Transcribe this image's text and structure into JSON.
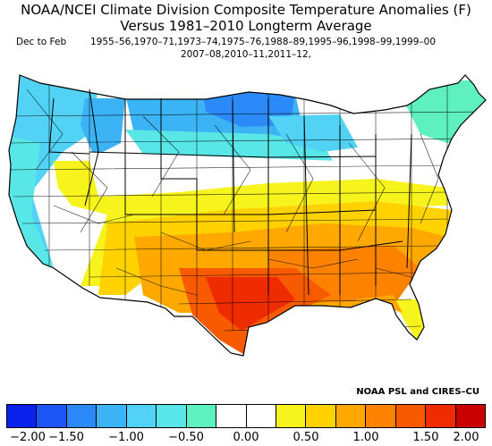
{
  "title": "NOAA/NCEI Climate Division Composite Temperature Anomalies (F)",
  "subtitle": "Versus 1981–2010 Longterm Average",
  "season_label": "Dec to Feb",
  "years_line1": "1955–56,1970–71,1973–74,1975–76,1988–89,1995–96,1998–99,1999–00",
  "years_line2": "2007–08,2010–11,2011–12,",
  "credit": "NOAA PSL and CIRES–CU",
  "colorbar": {
    "colors": [
      "#0b22ee",
      "#1d55f6",
      "#2c8af8",
      "#3cb3f5",
      "#52d2f4",
      "#58e6e6",
      "#5ff0bf",
      "#ffffff",
      "#ffffff",
      "#f7f31c",
      "#ffd200",
      "#ffa800",
      "#fc8200",
      "#f85a00",
      "#ee2c00",
      "#c80000"
    ],
    "labels": [
      "−2.00",
      "−1.50",
      "−1.00",
      "−0.50",
      "0.00",
      "0.50",
      "1.00",
      "1.50",
      "2.00"
    ]
  },
  "map": {
    "regions": [
      {
        "name": "pacific-northwest",
        "anomaly": "-0.50 to -1.00",
        "color": "#52d2f4"
      },
      {
        "name": "northern-plains",
        "anomaly": "-1.50 to -2.00",
        "color": "#2c8af8"
      },
      {
        "name": "great-lakes",
        "anomaly": "-1.00 to -1.50",
        "color": "#3cb3f5"
      },
      {
        "name": "new-england",
        "anomaly": "-0.25 to -0.75",
        "color": "#5ff0bf"
      },
      {
        "name": "mountain-west",
        "anomaly": "-0.25 to 0.25",
        "color": "#ffffff"
      },
      {
        "name": "great-basin",
        "anomaly": "0.25 to 0.50",
        "color": "#f7f31c"
      },
      {
        "name": "southwest",
        "anomaly": "0.50 to 1.00",
        "color": "#ffd200"
      },
      {
        "name": "southeast",
        "anomaly": "1.00 to 1.50",
        "color": "#fc8200"
      },
      {
        "name": "texas-gulf",
        "anomaly": "1.50 to 2.00",
        "color": "#ee2c00"
      }
    ]
  }
}
